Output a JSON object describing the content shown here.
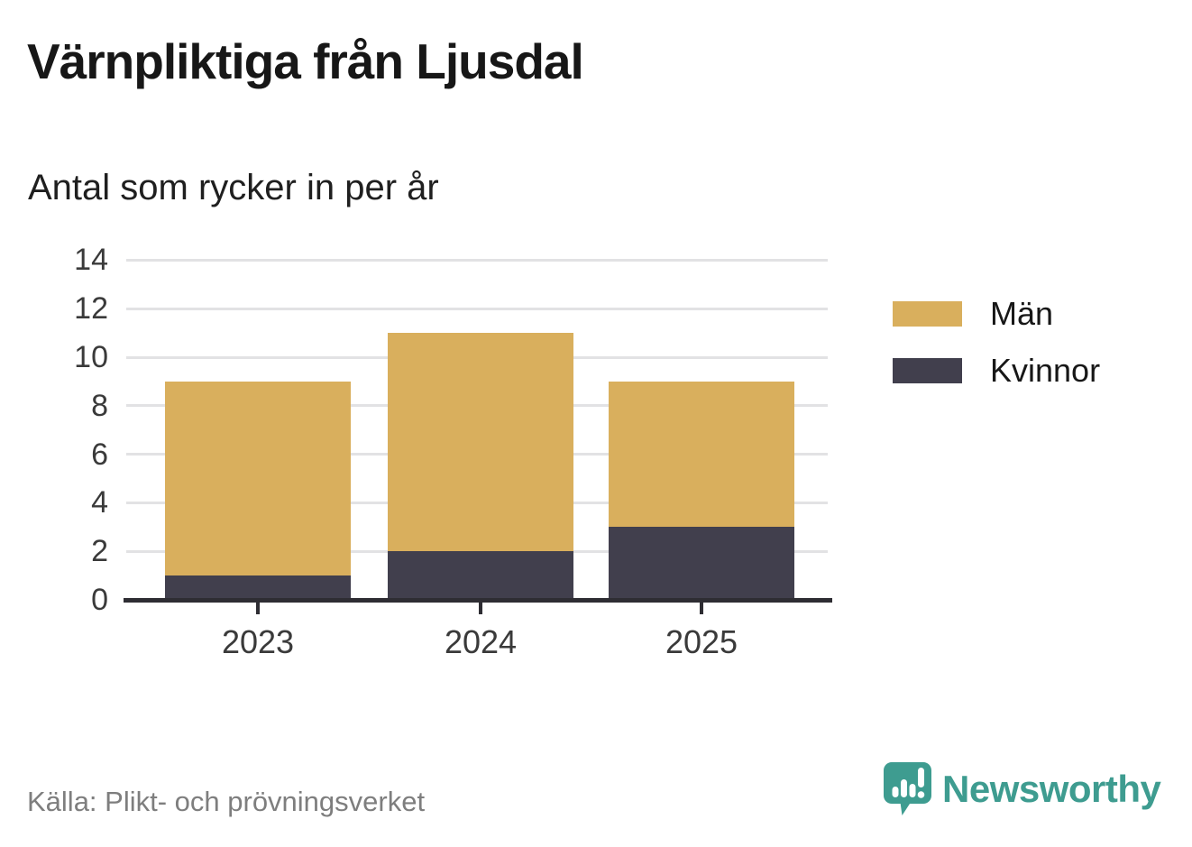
{
  "title": "Värnpliktiga från Ljusdal",
  "subtitle": "Antal som rycker in per år",
  "source": "Källa: Plikt- och prövningsverket",
  "brand": {
    "name": "Newsworthy",
    "color": "#3E9C90",
    "icon": "newsworthy-speech-bubble-chart-icon"
  },
  "chart_data": {
    "type": "bar",
    "stacked": true,
    "title": "Värnpliktiga från Ljusdal",
    "subtitle": "Antal som rycker in per år",
    "categories": [
      "2023",
      "2024",
      "2025"
    ],
    "series": [
      {
        "name": "Män",
        "color": "#D9AF5D",
        "values": [
          8,
          9,
          6
        ]
      },
      {
        "name": "Kvinnor",
        "color": "#413F4D",
        "values": [
          1,
          2,
          3
        ]
      }
    ],
    "totals": [
      9,
      11,
      9
    ],
    "yticks": [
      0,
      2,
      4,
      6,
      8,
      10,
      12,
      14
    ],
    "ylim": [
      0,
      14
    ],
    "xlabel": "",
    "ylabel": "",
    "grid": true,
    "legend_position": "right",
    "colors": {
      "axis": "#2E2D33",
      "grid": "#E2E2E4",
      "tick_labels": "#3A3A3A"
    }
  }
}
